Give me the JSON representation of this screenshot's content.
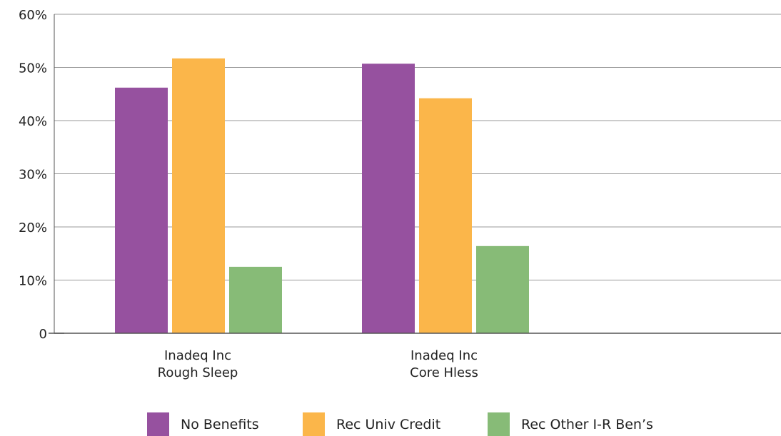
{
  "chart_data": {
    "type": "bar",
    "title": "",
    "xlabel": "",
    "ylabel": "",
    "ylim": [
      0,
      60
    ],
    "yticks": [
      {
        "value": 0,
        "label": "0"
      },
      {
        "value": 10,
        "label": "10%"
      },
      {
        "value": 20,
        "label": "20%"
      },
      {
        "value": 30,
        "label": "30%"
      },
      {
        "value": 40,
        "label": "40%"
      },
      {
        "value": 50,
        "label": "50%"
      },
      {
        "value": 60,
        "label": "60%"
      }
    ],
    "grid": true,
    "legend_position": "bottom",
    "categories": [
      {
        "line1": "Inadeq Inc",
        "line2": "Rough Sleep"
      },
      {
        "line1": "Inadeq Inc",
        "line2": "Core Hless"
      }
    ],
    "series": [
      {
        "name": "No Benefits",
        "color": "#96519f",
        "values": [
          46.2,
          50.7
        ]
      },
      {
        "name": "Rec Univ Credit",
        "color": "#fbb64a",
        "values": [
          51.7,
          44.2
        ]
      },
      {
        "name": "Rec Other I-R Ben’s",
        "color": "#87bb77",
        "values": [
          12.5,
          16.4
        ]
      }
    ]
  }
}
